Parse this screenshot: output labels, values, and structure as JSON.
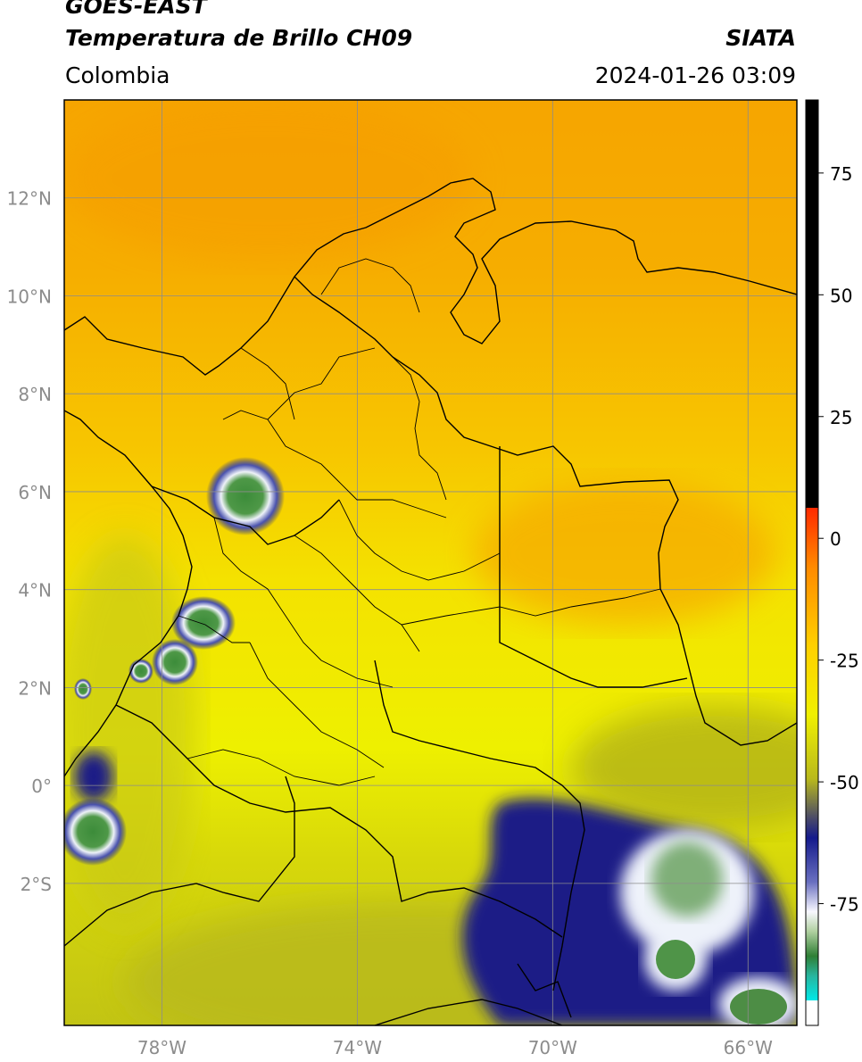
{
  "header": {
    "satellite": "GOES-EAST",
    "product": "Temperatura de Brillo CH09",
    "region": "Colombia",
    "agency": "SIATA",
    "datetime": "2024-01-26 03:09"
  },
  "map": {
    "lon_range": [
      -80,
      -65
    ],
    "lat_range": [
      -4.9,
      14
    ],
    "lat_ticks": [
      {
        "value": 12,
        "label": "12°N"
      },
      {
        "value": 10,
        "label": "10°N"
      },
      {
        "value": 8,
        "label": "8°N"
      },
      {
        "value": 6,
        "label": "6°N"
      },
      {
        "value": 4,
        "label": "4°N"
      },
      {
        "value": 2,
        "label": "2°N"
      },
      {
        "value": 0,
        "label": "0°"
      },
      {
        "value": -2,
        "label": "2°S"
      }
    ],
    "lon_ticks": [
      {
        "value": -78,
        "label": "78°W"
      },
      {
        "value": -74,
        "label": "74°W"
      },
      {
        "value": -70,
        "label": "70°W"
      },
      {
        "value": -66,
        "label": "66°W"
      }
    ],
    "colors": {
      "warm": "#f5a300",
      "mid": "#f7d400",
      "cool": "#ecec00",
      "olive": "#b7b817",
      "navy": "#1a1f86",
      "white": "#f4f6fb",
      "green": "#3f8f3d",
      "border": "#000000",
      "grid": "#8c8c8c"
    }
  },
  "colorbar": {
    "vmin": -100,
    "vmax": 90,
    "ticks": [
      {
        "value": 75,
        "label": "75"
      },
      {
        "value": 50,
        "label": "50"
      },
      {
        "value": 25,
        "label": "25"
      },
      {
        "value": 0,
        "label": "0"
      },
      {
        "value": -25,
        "label": "-25"
      },
      {
        "value": -50,
        "label": "-50"
      },
      {
        "value": -75,
        "label": "-75"
      }
    ]
  }
}
